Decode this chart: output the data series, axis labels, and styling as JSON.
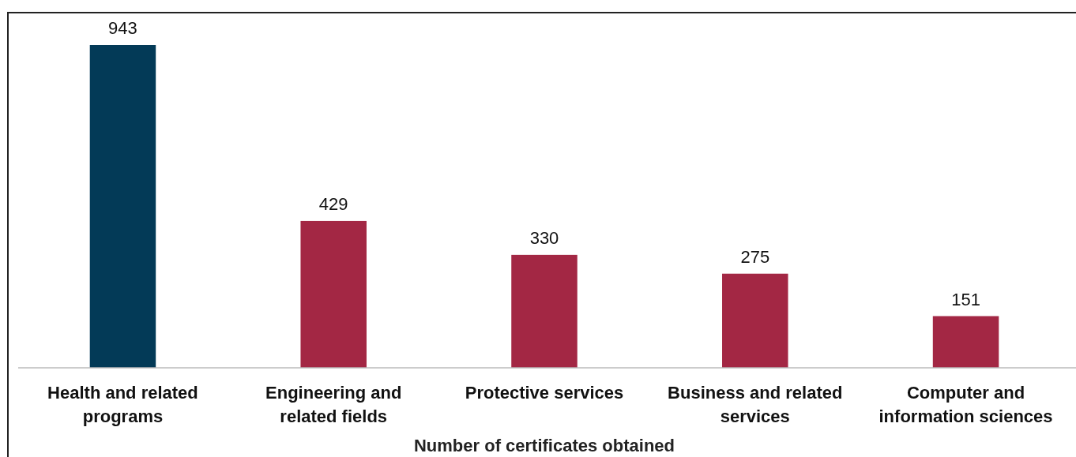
{
  "chart_data": {
    "type": "bar",
    "xlabel": "Number of certificates obtained",
    "categories": [
      "Health and related programs",
      "Engineering and related fields",
      "Protective services",
      "Business and related services",
      "Computer and information sciences"
    ],
    "values": [
      943,
      429,
      330,
      275,
      151
    ],
    "colors": [
      "#033a57",
      "#a32744",
      "#a32744",
      "#a32744",
      "#a32744"
    ],
    "data_labels": true
  }
}
